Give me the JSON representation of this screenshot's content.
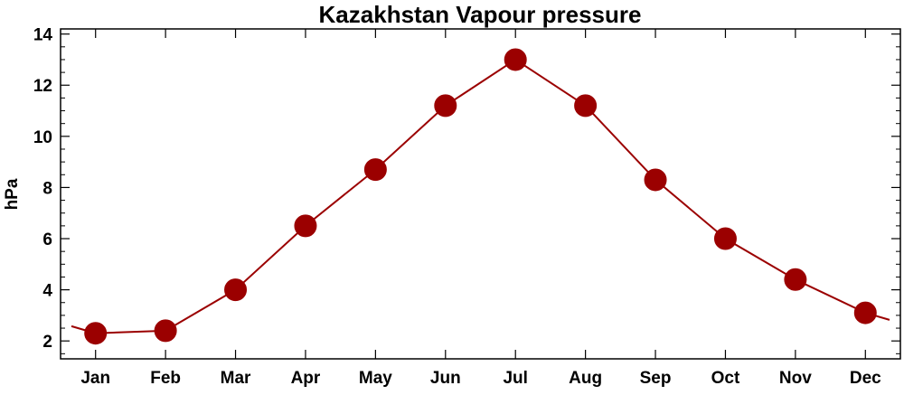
{
  "chart_data": {
    "type": "line",
    "title": "Kazakhstan Vapour pressure",
    "xlabel": "",
    "ylabel": "hPa",
    "categories": [
      "Jan",
      "Feb",
      "Mar",
      "Apr",
      "May",
      "Jun",
      "Jul",
      "Aug",
      "Sep",
      "Oct",
      "Nov",
      "Dec"
    ],
    "series": [
      {
        "values": [
          2.3,
          2.4,
          4.0,
          6.5,
          8.7,
          11.2,
          13.0,
          11.2,
          8.3,
          6.0,
          4.4,
          3.1
        ]
      }
    ],
    "ylim": [
      1.3,
      14.2
    ],
    "yticks": [
      2,
      4,
      6,
      8,
      10,
      12,
      14
    ],
    "ytick_labels": [
      "2",
      "4",
      "6",
      "8",
      "10",
      "12",
      "14"
    ],
    "grid": false,
    "legend": "none",
    "line_wraps_cyclically": true,
    "colors": {
      "line": "#9b0000",
      "marker": "#9b0000",
      "axis": "#000000"
    }
  }
}
